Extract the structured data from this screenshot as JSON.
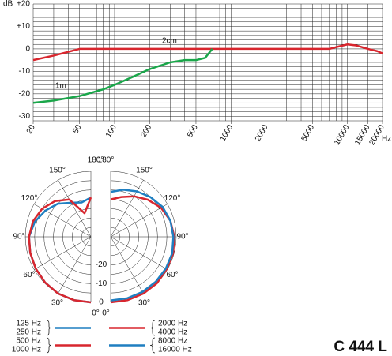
{
  "model": "C 444 L",
  "chart_data": [
    {
      "type": "line",
      "ylabel": "dB",
      "xlabel": "Hz",
      "log_x": true,
      "xlim": [
        20,
        20000
      ],
      "ylim": [
        -32,
        20
      ],
      "xticks": [
        20,
        50,
        100,
        200,
        500,
        1000,
        2000,
        5000,
        10000,
        15000,
        20000
      ],
      "yticks": [
        {
          "value": 20,
          "label": "+20"
        },
        {
          "value": 10,
          "label": "+10"
        },
        0,
        -10,
        -20,
        -30
      ],
      "xgrid": [
        20,
        30,
        40,
        50,
        60,
        70,
        80,
        90,
        100,
        200,
        300,
        400,
        500,
        600,
        700,
        800,
        900,
        1000,
        2000,
        3000,
        4000,
        5000,
        6000,
        7000,
        8000,
        9000,
        10000,
        15000,
        20000
      ],
      "ygrid": [
        -32,
        -30,
        -28,
        -26,
        -24,
        -22,
        -20,
        -18,
        -16,
        -14,
        -12,
        -10,
        -8,
        -6,
        -4,
        -2,
        0,
        2,
        4,
        6,
        8,
        10,
        12,
        14,
        16,
        18,
        20
      ],
      "series": [
        {
          "name": "2cm",
          "color": "#d8262e",
          "x": [
            20,
            30,
            50,
            7000,
            8000,
            10000,
            12000,
            15000,
            18000,
            20000
          ],
          "values": [
            -5,
            -3,
            0,
            0,
            0.8,
            2,
            1.5,
            0,
            -1,
            -2
          ]
        },
        {
          "name": "1m",
          "color": "#1aa64a",
          "x": [
            20,
            30,
            50,
            80,
            100,
            150,
            200,
            300,
            400,
            500,
            600,
            690
          ],
          "values": [
            -24,
            -23,
            -21,
            -18,
            -16,
            -12,
            -9,
            -6,
            -5,
            -5,
            -4,
            0
          ]
        }
      ]
    },
    {
      "type": "polar",
      "rlim": [
        -35,
        0
      ],
      "rticks": [
        -20,
        -10,
        0
      ],
      "rgrid": [
        -30,
        -25,
        -20,
        -15,
        -10,
        -5,
        0
      ],
      "angle_ticks": [
        {
          "value": 0,
          "label": "0°"
        },
        {
          "value": 30,
          "label": "30°"
        },
        {
          "value": 60,
          "label": "60°"
        },
        {
          "value": 90,
          "label": "90°"
        },
        {
          "value": 120,
          "label": "120°"
        },
        {
          "value": 150,
          "label": "150°"
        },
        {
          "value": 180,
          "label": "180°"
        }
      ],
      "angles": [
        0,
        15,
        30,
        45,
        60,
        75,
        90,
        105,
        120,
        135,
        150,
        165,
        180
      ],
      "series": [
        {
          "labels": [
            "125 Hz",
            "250 Hz"
          ],
          "side": "left",
          "color": "#1f7fc1",
          "values": [
            0,
            0,
            0,
            -0.5,
            -1,
            -1.5,
            -2,
            -4,
            -7,
            -10,
            -14,
            -16,
            -14
          ]
        },
        {
          "labels": [
            "500 Hz",
            "1000 Hz"
          ],
          "side": "left",
          "color": "#d8262e",
          "values": [
            0,
            0,
            0,
            -0.5,
            -1,
            -1.5,
            -2,
            -3,
            -5,
            -8,
            -12,
            -22,
            -14
          ]
        },
        {
          "labels": [
            "2000 Hz",
            "4000 Hz"
          ],
          "side": "right",
          "color": "#d8262e",
          "values": [
            0,
            0,
            0,
            0,
            -0.5,
            -0.5,
            -1,
            -2,
            -4,
            -7,
            -10,
            -13,
            -15
          ]
        },
        {
          "labels": [
            "8000 Hz",
            "16000 Hz"
          ],
          "side": "right",
          "color": "#1f7fc1",
          "values": [
            -1,
            -1,
            -1,
            -1,
            -1,
            -1,
            -1.5,
            -2,
            -3,
            -5,
            -7,
            -9,
            -11
          ]
        }
      ]
    }
  ]
}
